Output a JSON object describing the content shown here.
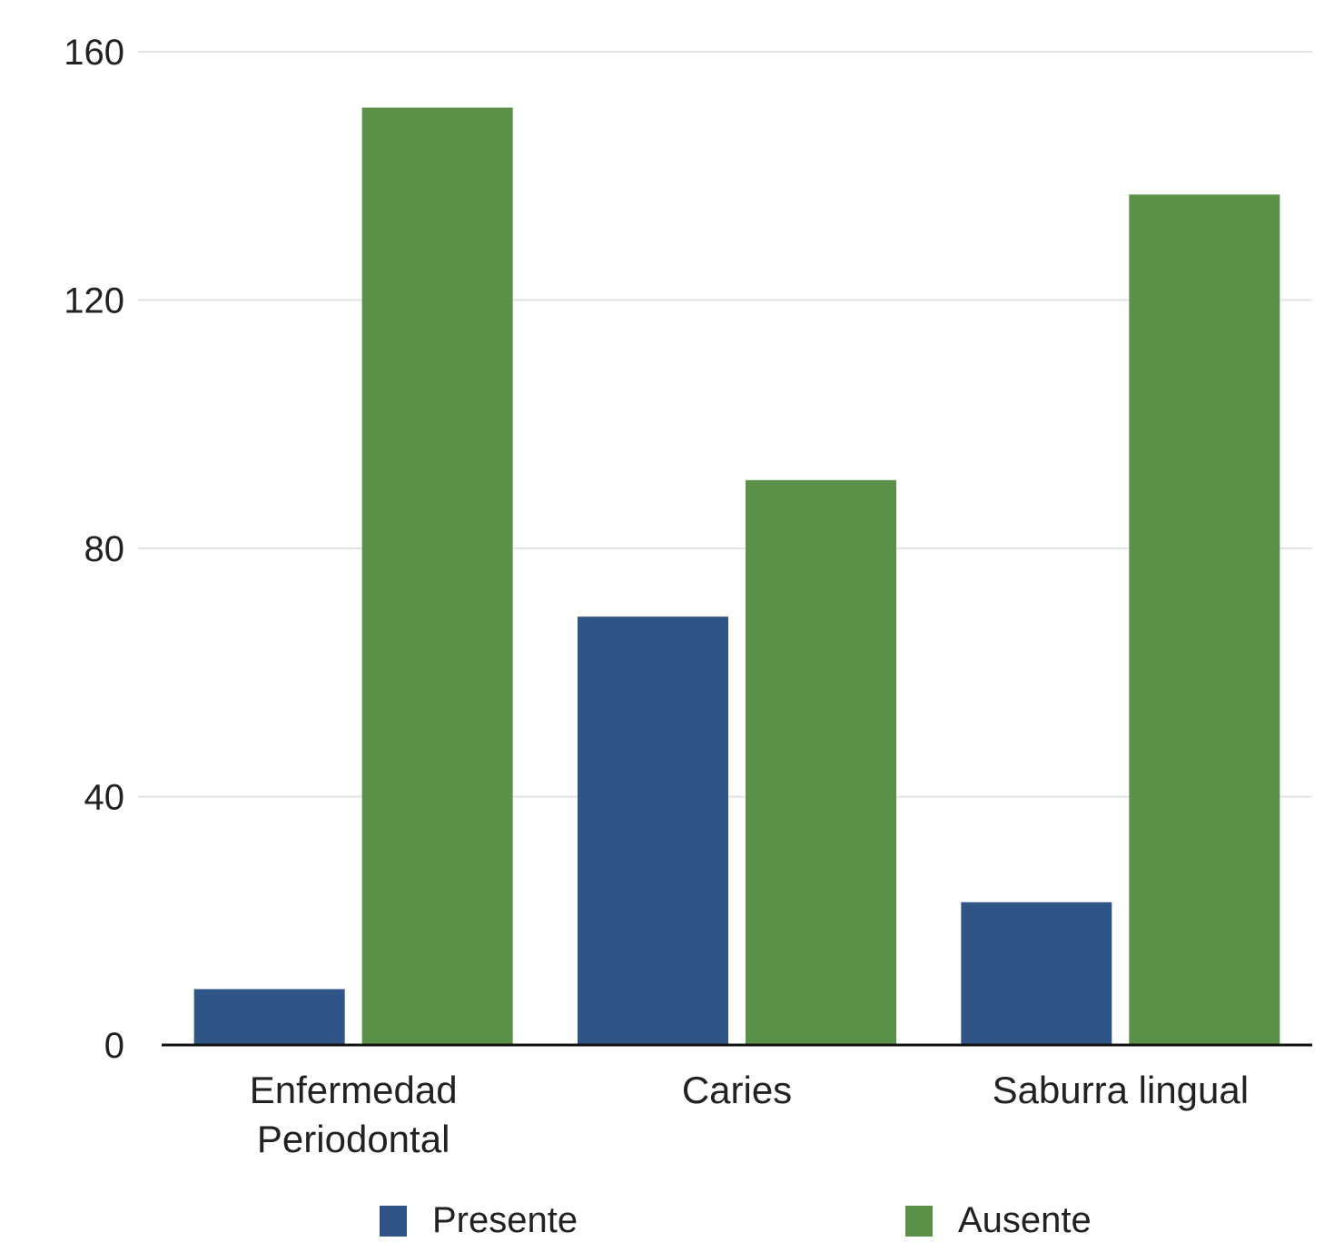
{
  "chart_data": {
    "type": "bar",
    "categories": [
      [
        "Enfermedad",
        "Periodontal"
      ],
      [
        "Caries"
      ],
      [
        "Saburra lingual"
      ]
    ],
    "series": [
      {
        "name": "Presente",
        "color": "#2f5486",
        "values": [
          9,
          69,
          23
        ]
      },
      {
        "name": "Ausente",
        "color": "#5a9148",
        "values": [
          151,
          91,
          137
        ]
      }
    ],
    "ylim": [
      0,
      160
    ],
    "yticks": [
      "0",
      "40",
      "80",
      "120",
      "160"
    ],
    "grid": true,
    "legend_position": "bottom",
    "title": "",
    "xlabel": "",
    "ylabel": ""
  }
}
